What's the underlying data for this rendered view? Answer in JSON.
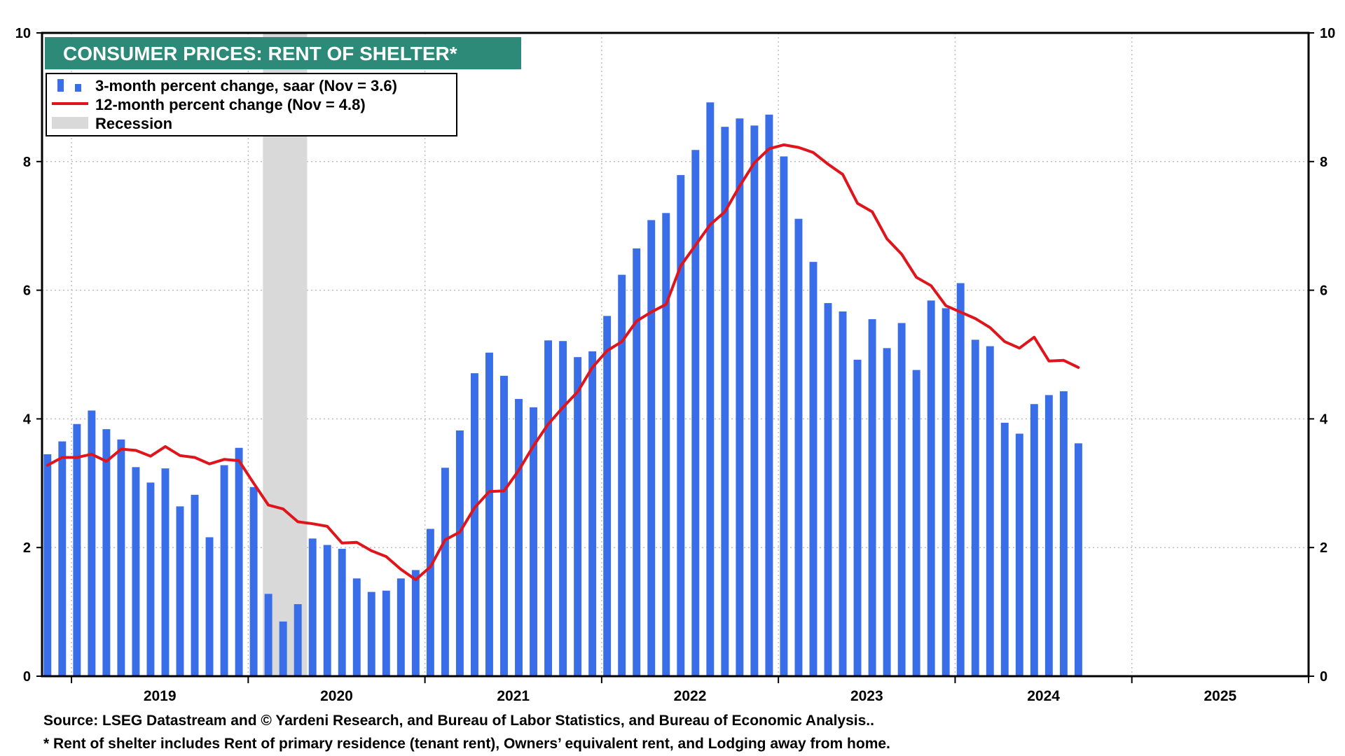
{
  "chart_data": {
    "type": "bar",
    "title": "CONSUMER PRICES: RENT OF SHELTER*",
    "y_axis": {
      "min": 0,
      "max": 10,
      "ticks": [
        0,
        2,
        4,
        6,
        8,
        10
      ],
      "grid": true,
      "mirrored_right": true
    },
    "x_axis": {
      "years": [
        "2019",
        "2020",
        "2021",
        "2022",
        "2023",
        "2024",
        "2025"
      ],
      "start": "2018-11",
      "end": "2025-12"
    },
    "colors": {
      "bars": "#3a6ee8",
      "line": "#e0141b",
      "recession": "#d9d9d9",
      "title_bg": "#2e8a78"
    },
    "legend": [
      {
        "label": "3-month percent change, saar (Nov = 3.6)",
        "kind": "bar"
      },
      {
        "label": "12-month percent change (Nov = 4.8)",
        "kind": "line"
      },
      {
        "label": "Recession",
        "kind": "shade"
      }
    ],
    "recession": {
      "start": "2020-02",
      "end": "2020-04"
    },
    "series": [
      {
        "name": "3-month percent change, saar",
        "kind": "bar",
        "start": "2018-11",
        "values": [
          3.45,
          3.65,
          3.92,
          4.13,
          3.84,
          3.68,
          3.25,
          3.01,
          3.23,
          2.64,
          2.82,
          2.16,
          3.28,
          3.55,
          2.94,
          1.28,
          0.85,
          1.12,
          2.14,
          2.04,
          1.98,
          1.52,
          1.31,
          1.33,
          1.52,
          1.65,
          2.29,
          3.24,
          3.82,
          4.71,
          5.03,
          4.67,
          4.31,
          4.18,
          5.22,
          5.21,
          4.96,
          5.05,
          5.6,
          6.24,
          6.65,
          7.09,
          7.2,
          7.79,
          8.18,
          8.92,
          8.54,
          8.67,
          8.56,
          8.73,
          8.08,
          7.11,
          6.44,
          5.8,
          5.67,
          4.92,
          5.55,
          5.1,
          5.49,
          4.76,
          5.84,
          5.72,
          6.11,
          5.23,
          5.13,
          3.94,
          3.77,
          4.23,
          4.37,
          4.43,
          3.62
        ]
      },
      {
        "name": "12-month percent change",
        "kind": "line",
        "start": "2018-11",
        "values": [
          3.28,
          3.4,
          3.4,
          3.45,
          3.34,
          3.53,
          3.51,
          3.42,
          3.57,
          3.43,
          3.4,
          3.3,
          3.37,
          3.35,
          3.0,
          2.66,
          2.6,
          2.4,
          2.37,
          2.33,
          2.07,
          2.08,
          1.95,
          1.86,
          1.66,
          1.5,
          1.7,
          2.12,
          2.24,
          2.62,
          2.87,
          2.88,
          3.2,
          3.58,
          3.92,
          4.18,
          4.42,
          4.8,
          5.06,
          5.2,
          5.52,
          5.66,
          5.78,
          6.38,
          6.7,
          7.02,
          7.22,
          7.62,
          7.98,
          8.2,
          8.26,
          8.22,
          8.14,
          7.96,
          7.8,
          7.35,
          7.22,
          6.8,
          6.56,
          6.2,
          6.07,
          5.76,
          5.66,
          5.56,
          5.42,
          5.2,
          5.1,
          5.27,
          4.9,
          4.91,
          4.8
        ]
      }
    ]
  },
  "footnotes": {
    "source": "Source: LSEG Datastream and © Yardeni Research, and Bureau of Labor Statistics, and Bureau of Economic Analysis..",
    "note": "* Rent of shelter includes Rent of primary residence (tenant rent), Owners’ equivalent rent, and Lodging away from home."
  }
}
